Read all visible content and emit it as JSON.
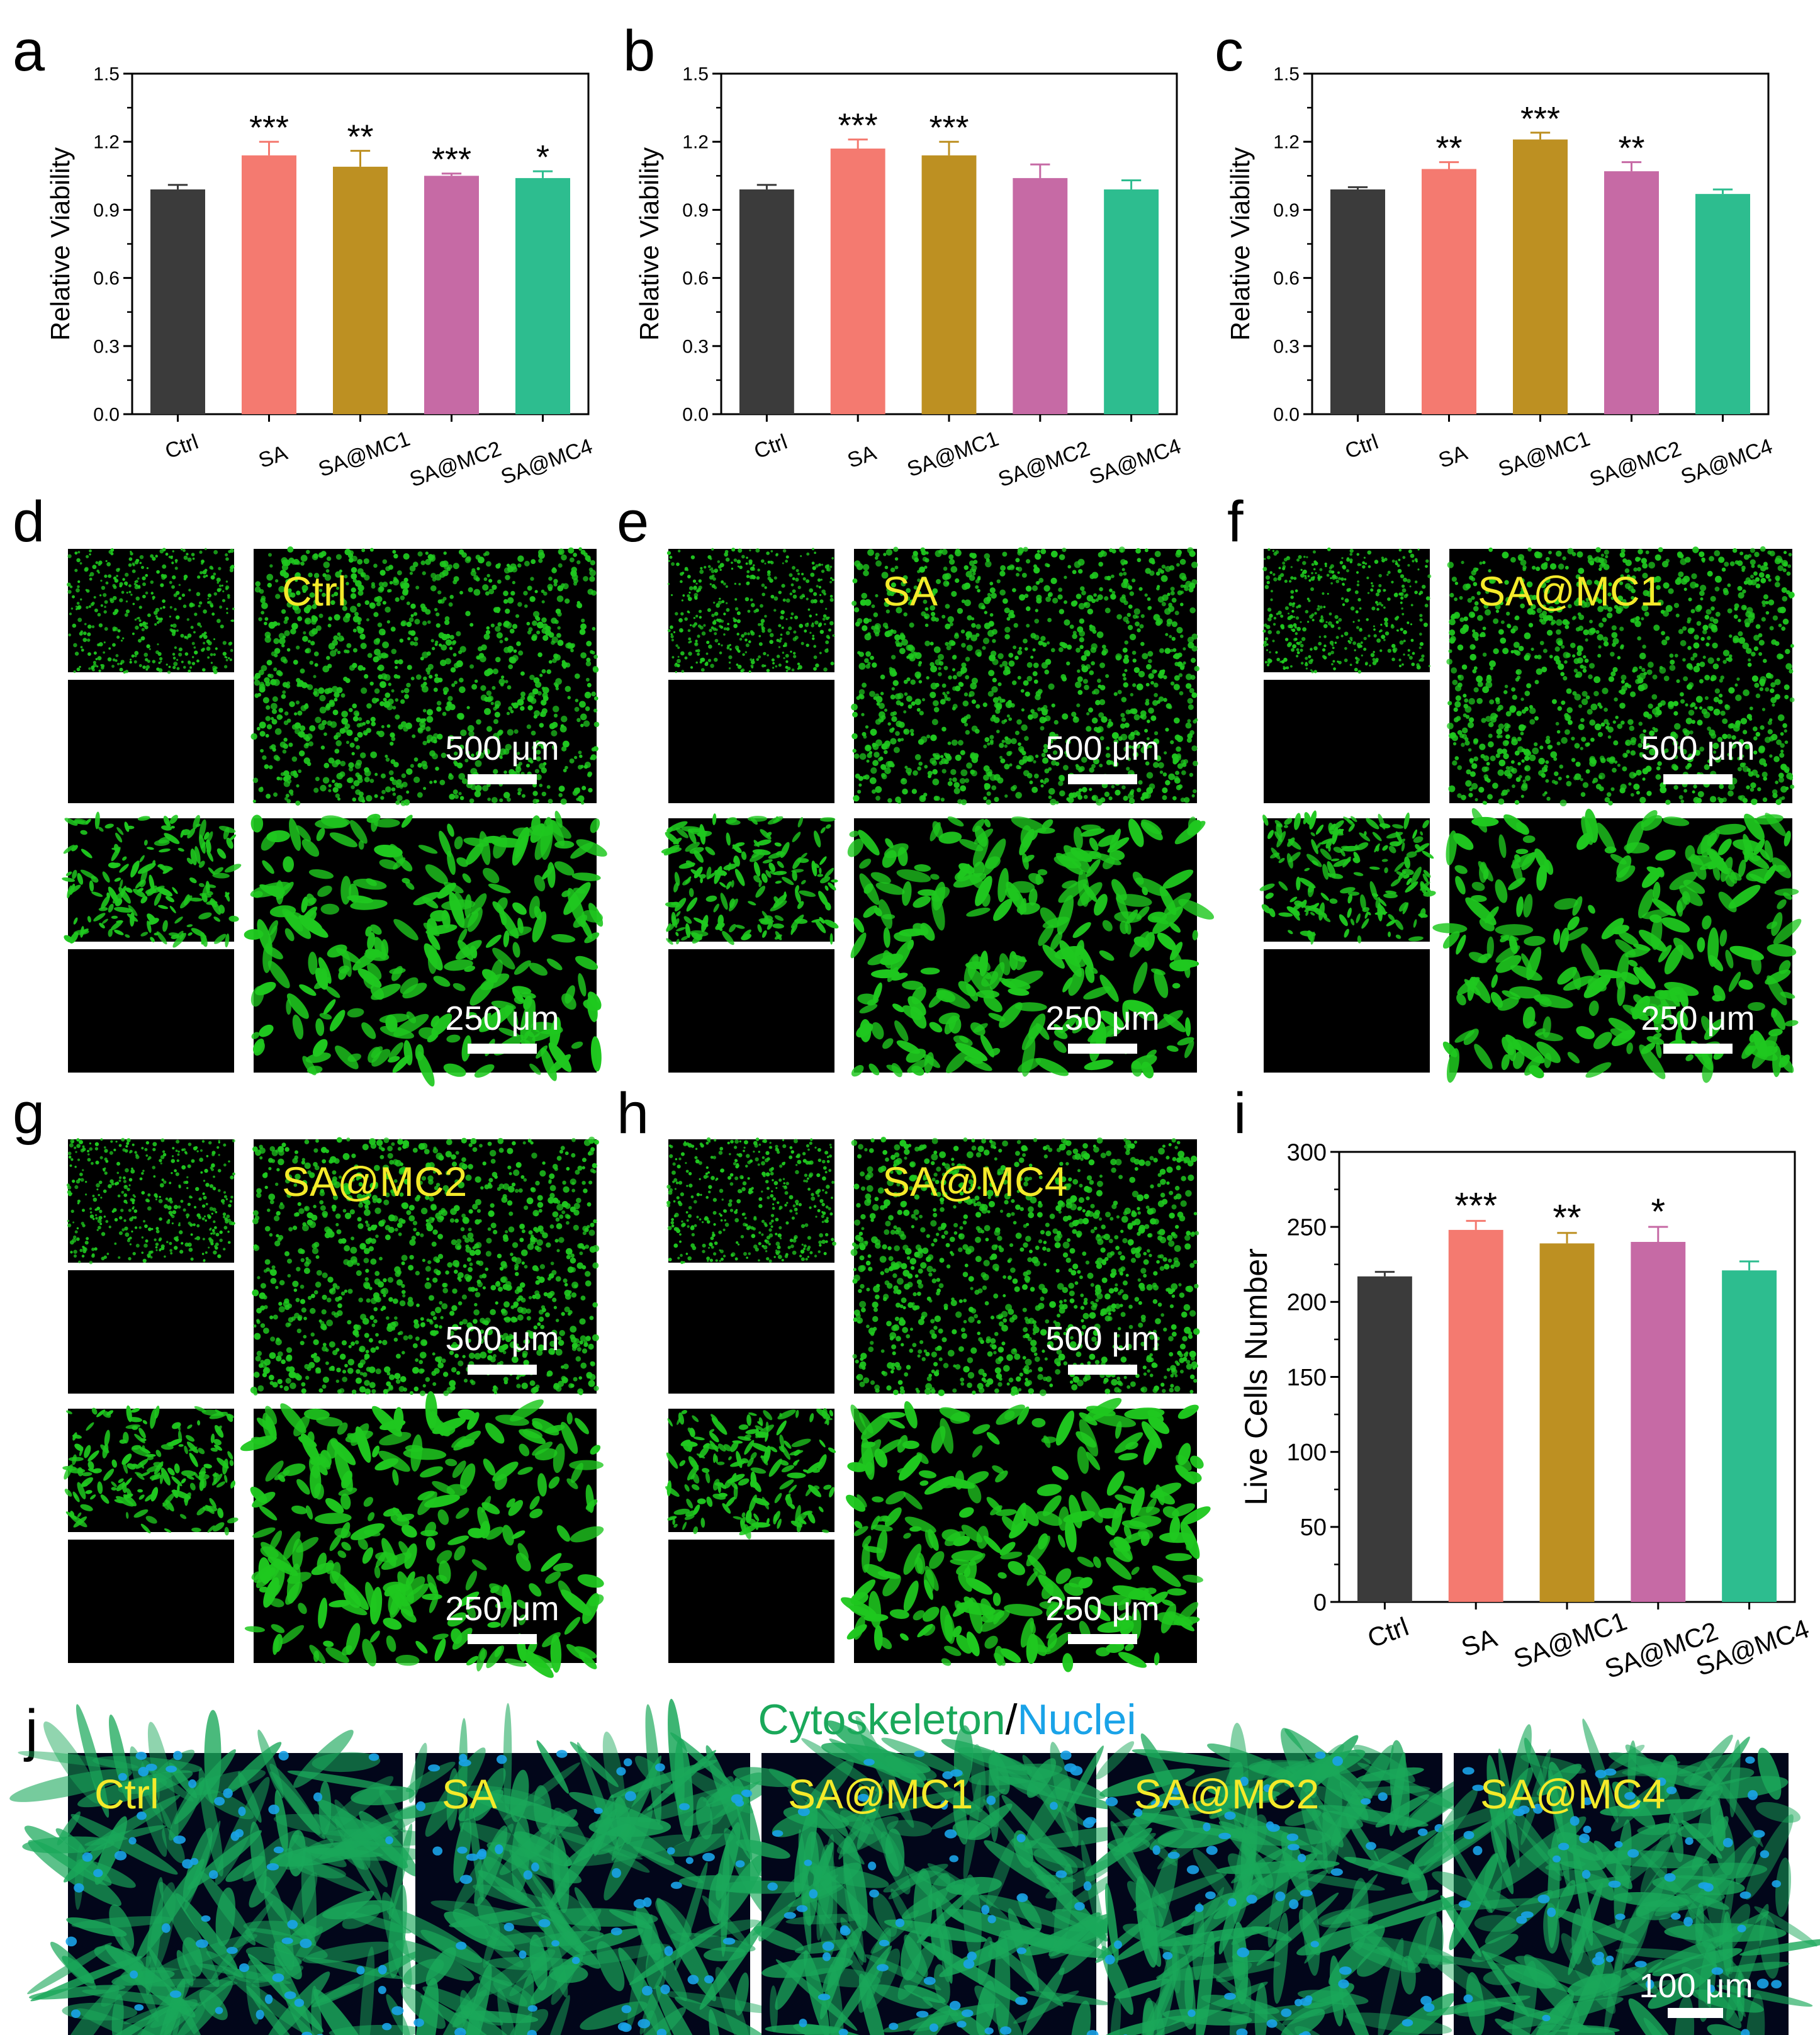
{
  "panel_letters": [
    "a",
    "b",
    "c",
    "d",
    "e",
    "f",
    "g",
    "h",
    "i",
    "j"
  ],
  "colors": {
    "bars": [
      "#3b3b3b",
      "#f47a70",
      "#bd9022",
      "#c66aa5",
      "#2dbd8f"
    ],
    "micro_green": "#1fc81f",
    "micro_yellow_label": "#f4ea2a",
    "cytoskeleton": "#1aa85a",
    "nuclei": "#1aa3e8"
  },
  "chart_data": [
    {
      "id": "a",
      "type": "bar",
      "ylabel": "Relative Viability",
      "categories": [
        "Ctrl",
        "SA",
        "SA@MC1",
        "SA@MC2",
        "SA@MC4"
      ],
      "values": [
        0.99,
        1.14,
        1.09,
        1.05,
        1.04
      ],
      "errors": [
        0.02,
        0.06,
        0.07,
        0.01,
        0.03
      ],
      "significance": [
        "",
        "***",
        "**",
        "***",
        "*"
      ],
      "ylim": [
        0,
        1.5
      ],
      "yticks": [
        "0.0",
        "0.3",
        "0.6",
        "0.9",
        "1.2",
        "1.5"
      ]
    },
    {
      "id": "b",
      "type": "bar",
      "ylabel": "Relative Viability",
      "categories": [
        "Ctrl",
        "SA",
        "SA@MC1",
        "SA@MC2",
        "SA@MC4"
      ],
      "values": [
        0.99,
        1.17,
        1.14,
        1.04,
        0.99
      ],
      "errors": [
        0.02,
        0.04,
        0.06,
        0.06,
        0.04
      ],
      "significance": [
        "",
        "***",
        "***",
        "",
        ""
      ],
      "ylim": [
        0,
        1.5
      ],
      "yticks": [
        "0.0",
        "0.3",
        "0.6",
        "0.9",
        "1.2",
        "1.5"
      ]
    },
    {
      "id": "c",
      "type": "bar",
      "ylabel": "Relative Viability",
      "categories": [
        "Ctrl",
        "SA",
        "SA@MC1",
        "SA@MC2",
        "SA@MC4"
      ],
      "values": [
        0.99,
        1.08,
        1.21,
        1.07,
        0.97
      ],
      "errors": [
        0.01,
        0.03,
        0.03,
        0.04,
        0.02
      ],
      "significance": [
        "",
        "**",
        "***",
        "**",
        ""
      ],
      "ylim": [
        0,
        1.5
      ],
      "yticks": [
        "0.0",
        "0.3",
        "0.6",
        "0.9",
        "1.2",
        "1.5"
      ]
    },
    {
      "id": "i",
      "type": "bar",
      "ylabel": "Live Cells Number",
      "categories": [
        "Ctrl",
        "SA",
        "SA@MC1",
        "SA@MC2",
        "SA@MC4"
      ],
      "values": [
        217,
        248,
        239,
        240,
        221
      ],
      "errors": [
        3,
        6,
        7,
        10,
        6
      ],
      "significance": [
        "",
        "***",
        "**",
        "*",
        ""
      ],
      "ylim": [
        0,
        300
      ],
      "yticks": [
        "0",
        "50",
        "100",
        "150",
        "200",
        "250",
        "300"
      ]
    }
  ],
  "live_dead_panels": [
    {
      "id": "d",
      "label": "Ctrl",
      "scale_top": "500 μm",
      "scale_bottom": "250 μm"
    },
    {
      "id": "e",
      "label": "SA",
      "scale_top": "500 μm",
      "scale_bottom": "250 μm"
    },
    {
      "id": "f",
      "label": "SA@MC1",
      "scale_top": "500 μm",
      "scale_bottom": "250 μm"
    },
    {
      "id": "g",
      "label": "SA@MC2",
      "scale_top": "500 μm",
      "scale_bottom": "250 μm"
    },
    {
      "id": "h",
      "label": "SA@MC4",
      "scale_top": "500 μm",
      "scale_bottom": "250 μm"
    }
  ],
  "panel_j": {
    "title_part1": "Cytoskeleton",
    "title_sep": "/",
    "title_part2": "Nuclei",
    "labels": [
      "Ctrl",
      "SA",
      "SA@MC1",
      "SA@MC2",
      "SA@MC4"
    ],
    "scale": "100 μm"
  }
}
